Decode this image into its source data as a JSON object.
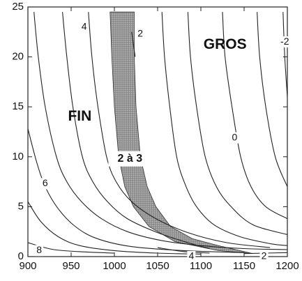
{
  "chart_data": {
    "type": "contour",
    "xlim": [
      900,
      1200
    ],
    "ylim": [
      0,
      25
    ],
    "x_ticks": [
      "900",
      "950",
      "1000",
      "1050",
      "1100",
      "1150",
      "1200"
    ],
    "y_ticks": [
      "0",
      "5",
      "10",
      "15",
      "20",
      "25"
    ],
    "grid": false,
    "region_labels": [
      {
        "text": "FIN",
        "x": 960,
        "y": 14
      },
      {
        "text": "GROS",
        "x": 1128,
        "y": 21.2
      }
    ],
    "band": {
      "label": "2 à 3",
      "label_x": 1018,
      "label_y": 9.8,
      "fill": "#9a9a9a",
      "left_edge": [
        [
          995,
          24.5
        ],
        [
          997,
          20
        ],
        [
          1000,
          15
        ],
        [
          1005,
          10
        ],
        [
          1012,
          7
        ],
        [
          1022,
          5
        ],
        [
          1040,
          3
        ],
        [
          1070,
          1.5
        ],
        [
          1120,
          0.6
        ],
        [
          1160,
          0.3
        ]
      ],
      "right_edge": [
        [
          1023,
          24.5
        ],
        [
          1023,
          20
        ],
        [
          1025,
          15
        ],
        [
          1030,
          10
        ],
        [
          1038,
          7
        ],
        [
          1048,
          5
        ],
        [
          1065,
          3
        ],
        [
          1090,
          1.8
        ],
        [
          1125,
          1.0
        ],
        [
          1160,
          0.3
        ]
      ]
    },
    "contours": [
      {
        "level": "8",
        "points": [
          [
            900,
            1.4
          ],
          [
            930,
            0.7
          ],
          [
            970,
            0.45
          ],
          [
            1000,
            0.35
          ]
        ],
        "label_x": 913,
        "label_y": 0.6
      },
      {
        "level": "",
        "points": [
          [
            900,
            5.5
          ],
          [
            915,
            3.5
          ],
          [
            935,
            2.0
          ],
          [
            960,
            1.1
          ],
          [
            1000,
            0.6
          ],
          [
            1050,
            0.35
          ],
          [
            1100,
            0.25
          ]
        ]
      },
      {
        "level": "6",
        "points": [
          [
            900,
            12.8
          ],
          [
            910,
            9.5
          ],
          [
            920,
            7.0
          ],
          [
            935,
            4.8
          ],
          [
            955,
            3.0
          ],
          [
            980,
            1.8
          ],
          [
            1020,
            1.0
          ],
          [
            1080,
            0.6
          ],
          [
            1150,
            0.4
          ]
        ],
        "label_x": 920,
        "label_y": 7.3
      },
      {
        "level": "",
        "points": [
          [
            907,
            24.5
          ],
          [
            912,
            20
          ],
          [
            920,
            15
          ],
          [
            933,
            10
          ],
          [
            945,
            7.5
          ],
          [
            962,
            5.5
          ],
          [
            985,
            3.8
          ],
          [
            1015,
            2.5
          ],
          [
            1055,
            1.6
          ],
          [
            1100,
            1.1
          ],
          [
            1150,
            0.8
          ],
          [
            1200,
            0.7
          ]
        ]
      },
      {
        "level": "",
        "points": [
          [
            940,
            24.5
          ],
          [
            945,
            20
          ],
          [
            952,
            15
          ],
          [
            963,
            10
          ],
          [
            975,
            7.5
          ],
          [
            992,
            5.5
          ],
          [
            1015,
            3.8
          ],
          [
            1050,
            2.4
          ],
          [
            1085,
            1.4
          ],
          [
            1110,
            0.8
          ]
        ]
      },
      {
        "level": "4",
        "points": [
          [
            970,
            24.5
          ],
          [
            974,
            20
          ],
          [
            981,
            15
          ],
          [
            991,
            10
          ],
          [
            1002,
            7.5
          ],
          [
            1020,
            5.5
          ],
          [
            1048,
            3.8
          ],
          [
            1085,
            2.4
          ],
          [
            1130,
            1.4
          ],
          [
            1180,
            0.9
          ]
        ],
        "label_x": 965,
        "label_y": 23.0
      },
      {
        "level": "4",
        "points": [
          [
            1050,
            0.9
          ],
          [
            1080,
            0.5
          ],
          [
            1110,
            0.35
          ]
        ],
        "label_x": 1089,
        "label_y": 0.0
      },
      {
        "level": "2",
        "points": [
          [
            1020,
            22.5
          ],
          [
            1024,
            20
          ]
        ],
        "label_x": 1030,
        "label_y": 22.3
      },
      {
        "level": "",
        "points": [
          [
            1055,
            24.5
          ],
          [
            1058,
            20
          ],
          [
            1064,
            15
          ],
          [
            1072,
            10
          ],
          [
            1082,
            7.2
          ],
          [
            1095,
            5
          ],
          [
            1115,
            3.2
          ],
          [
            1145,
            2
          ],
          [
            1180,
            1.3
          ],
          [
            1200,
            1.1
          ]
        ]
      },
      {
        "level": "2",
        "points": [
          [
            1150,
            0.3
          ],
          [
            1200,
            0.4
          ]
        ],
        "label_x": 1173,
        "label_y": 0.0
      },
      {
        "level": "",
        "points": [
          [
            1085,
            24.5
          ],
          [
            1088,
            20
          ],
          [
            1095,
            15
          ],
          [
            1105,
            10
          ],
          [
            1118,
            7
          ],
          [
            1135,
            5
          ],
          [
            1160,
            3.2
          ],
          [
            1200,
            2.2
          ]
        ]
      },
      {
        "level": "0",
        "points": [
          [
            1125,
            24.5
          ],
          [
            1128,
            20
          ],
          [
            1136,
            15
          ],
          [
            1146,
            10
          ],
          [
            1158,
            7
          ],
          [
            1175,
            5
          ],
          [
            1200,
            3.8
          ]
        ],
        "label_x": 1139,
        "label_y": 11.9
      },
      {
        "level": "",
        "points": [
          [
            1165,
            24.5
          ],
          [
            1168,
            20
          ],
          [
            1175,
            15
          ],
          [
            1186,
            10
          ],
          [
            1200,
            7.0
          ]
        ]
      },
      {
        "level": "-2",
        "points": [
          [
            1195,
            24.5
          ],
          [
            1197,
            20
          ],
          [
            1200,
            16
          ]
        ],
        "label_x": 1197,
        "label_y": 21.5
      }
    ]
  }
}
